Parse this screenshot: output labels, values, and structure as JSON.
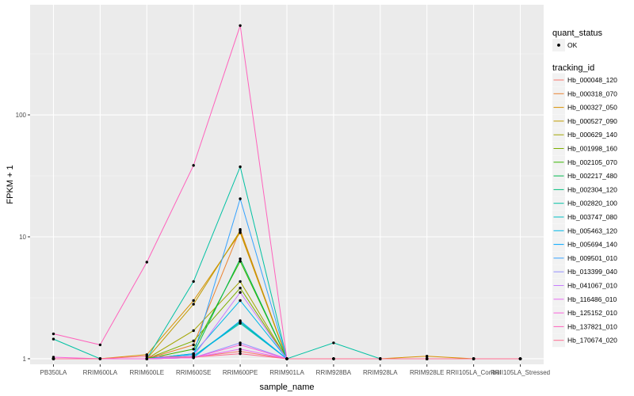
{
  "chart_data": {
    "type": "line",
    "xlabel": "sample_name",
    "ylabel": "FPKM + 1",
    "yscale": "log10",
    "ylim": [
      0.9,
      800
    ],
    "yticks": [
      {
        "value": 1,
        "label": "1"
      },
      {
        "value": 10,
        "label": "10"
      },
      {
        "value": 100,
        "label": "100"
      }
    ],
    "categories": [
      "PB350LA",
      "RRIM600LA",
      "RRIM600LE",
      "RRIM600SE",
      "RRIM600PE",
      "RRIM901LA",
      "RRIM928BA",
      "RRIM928LA",
      "RRIM928LE",
      "RRII105LA_Control",
      "RRII105LA_Stressed"
    ],
    "grid": true,
    "legend_position": "right",
    "point_legend": {
      "title": "quant_status",
      "entries": [
        {
          "label": "OK"
        }
      ]
    },
    "line_legend_title": "tracking_id",
    "series": [
      {
        "name": "Hb_000048_120",
        "color": "#F8766D",
        "values": [
          1,
          1,
          1,
          1.03,
          1.15,
          1,
          1,
          1,
          1,
          1,
          1
        ]
      },
      {
        "name": "Hb_000318_070",
        "color": "#EA8331",
        "values": [
          1,
          1,
          1,
          1.3,
          11.5,
          1,
          1,
          1,
          1,
          1,
          1
        ]
      },
      {
        "name": "Hb_000327_050",
        "color": "#D89000",
        "values": [
          1,
          1,
          1.08,
          3.0,
          10.8,
          1,
          1,
          1,
          1.05,
          1,
          1
        ]
      },
      {
        "name": "Hb_000527_090",
        "color": "#C09B00",
        "values": [
          1,
          1,
          1,
          2.8,
          11.2,
          1,
          1,
          1,
          1,
          1,
          1
        ]
      },
      {
        "name": "Hb_000629_140",
        "color": "#A3A500",
        "values": [
          1,
          1,
          1,
          1.7,
          4.3,
          1,
          1,
          1,
          1,
          1,
          1
        ]
      },
      {
        "name": "Hb_001998_160",
        "color": "#7CAE00",
        "values": [
          1,
          1,
          1,
          1.4,
          3.8,
          1,
          1,
          1,
          1,
          1,
          1
        ]
      },
      {
        "name": "Hb_002105_070",
        "color": "#39B600",
        "values": [
          1,
          1,
          1,
          1.2,
          6.3,
          1,
          1,
          1,
          1,
          1,
          1
        ]
      },
      {
        "name": "Hb_002217_480",
        "color": "#00BB4E",
        "values": [
          1,
          1,
          1,
          1.1,
          6.6,
          1,
          1,
          1,
          1,
          1,
          1
        ]
      },
      {
        "name": "Hb_002304_120",
        "color": "#00BF7D",
        "values": [
          1,
          1,
          1,
          1.05,
          2.0,
          1,
          1,
          1,
          1,
          1,
          1
        ]
      },
      {
        "name": "Hb_002820_100",
        "color": "#00C1A3",
        "values": [
          1.45,
          1,
          1,
          4.3,
          37.5,
          1,
          1.35,
          1,
          1,
          1,
          1
        ]
      },
      {
        "name": "Hb_003747_080",
        "color": "#00BFC4",
        "values": [
          1,
          1,
          1,
          1.05,
          1.95,
          1,
          1,
          1,
          1,
          1,
          1
        ]
      },
      {
        "name": "Hb_005463_120",
        "color": "#00B8E7",
        "values": [
          1,
          1,
          1,
          1.1,
          3.0,
          1,
          1,
          1,
          1,
          1,
          1
        ]
      },
      {
        "name": "Hb_005694_140",
        "color": "#00A9FF",
        "values": [
          1,
          1,
          1,
          1.02,
          2.05,
          1,
          1,
          1,
          1,
          1,
          1
        ]
      },
      {
        "name": "Hb_009501_010",
        "color": "#35A2FF",
        "values": [
          1,
          1,
          1,
          1.08,
          20.5,
          1,
          1,
          1,
          1,
          1,
          1
        ]
      },
      {
        "name": "Hb_013399_040",
        "color": "#9590FF",
        "values": [
          1,
          1,
          1,
          1.02,
          1.35,
          1,
          1,
          1,
          1,
          1,
          1
        ]
      },
      {
        "name": "Hb_041067_010",
        "color": "#C77CFF",
        "values": [
          1,
          1,
          1,
          1.05,
          3.5,
          1,
          1,
          1,
          1,
          1,
          1
        ]
      },
      {
        "name": "Hb_116486_010",
        "color": "#E76BF3",
        "values": [
          1,
          1,
          1,
          1.02,
          1.2,
          1,
          1,
          1,
          1,
          1,
          1
        ]
      },
      {
        "name": "Hb_125152_010",
        "color": "#FA62DB",
        "values": [
          1.03,
          1,
          1,
          1.02,
          1.3,
          1,
          1,
          1,
          1,
          1,
          1
        ]
      },
      {
        "name": "Hb_137821_010",
        "color": "#FF62BC",
        "values": [
          1.6,
          1.3,
          6.2,
          38.5,
          540,
          1,
          1,
          1,
          1,
          1,
          1
        ]
      },
      {
        "name": "Hb_170674_020",
        "color": "#FF6C91",
        "values": [
          1,
          1,
          1.05,
          1.03,
          1.1,
          1,
          1,
          1,
          1,
          1,
          1
        ]
      }
    ]
  }
}
